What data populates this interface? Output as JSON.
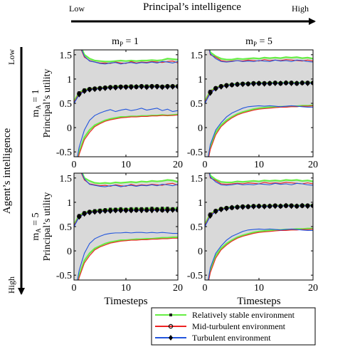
{
  "header": {
    "top_low": "Low",
    "top_title": "Principal’s intelligence",
    "top_high": "High",
    "left_low": "Low",
    "left_title": "Agent’s intelligence",
    "left_high": "High"
  },
  "columns": [
    {
      "pre": "m",
      "sub": "P",
      "post": " = 1"
    },
    {
      "pre": "m",
      "sub": "P",
      "post": " = 5"
    }
  ],
  "rows": [
    {
      "pre": "m",
      "sub": "A",
      "post": " = 1",
      "ylabel": "Principal’s utility"
    },
    {
      "pre": "m",
      "sub": "A",
      "post": " = 5",
      "ylabel": "Principal’s utility"
    }
  ],
  "xlabel": "Timesteps",
  "legend": {
    "entries": [
      {
        "label": "Relatively stable environment",
        "color": "#66ee44",
        "marker": "square"
      },
      {
        "label": "Mid-turbulent environment",
        "color": "#ee2222",
        "marker": "circle"
      },
      {
        "label": "Turbulent environment",
        "color": "#2255dd",
        "marker": "diamond"
      }
    ]
  },
  "colors": {
    "band": "#d9d9d9"
  },
  "chart_data": {
    "type": "line",
    "layout": "2x2 small multiples",
    "x": [
      0,
      1,
      2,
      3,
      4,
      5,
      6,
      7,
      8,
      9,
      10,
      11,
      12,
      13,
      14,
      15,
      16,
      17,
      18,
      19,
      20
    ],
    "xlim": [
      0,
      20
    ],
    "ylim": [
      -0.6,
      1.6
    ],
    "xticks": [
      0,
      10,
      20
    ],
    "yticks": [
      -0.5,
      0,
      0.5,
      1,
      1.5
    ],
    "ytick_labels": [
      "-0.5",
      "0",
      "0.5",
      "1",
      "1.5"
    ],
    "grid": false,
    "legend_position": "bottom-right",
    "panels": [
      {
        "name": "mA=1, mP=1",
        "series": [
          {
            "name": "Relatively stable environment",
            "mean": [
              0.55,
              0.72,
              0.78,
              0.8,
              0.81,
              0.82,
              0.83,
              0.84,
              0.85,
              0.85,
              0.85,
              0.86,
              0.85,
              0.86,
              0.86,
              0.86,
              0.86,
              0.85,
              0.86,
              0.86,
              0.86
            ],
            "upper": [
              2.0,
              1.75,
              1.5,
              1.42,
              1.38,
              1.37,
              1.36,
              1.36,
              1.37,
              1.38,
              1.37,
              1.38,
              1.37,
              1.38,
              1.38,
              1.39,
              1.38,
              1.39,
              1.42,
              1.41,
              1.4
            ],
            "lower": [
              -1.0,
              -0.5,
              -0.2,
              -0.05,
              0.05,
              0.1,
              0.15,
              0.18,
              0.2,
              0.22,
              0.22,
              0.23,
              0.23,
              0.24,
              0.24,
              0.25,
              0.25,
              0.26,
              0.25,
              0.26,
              0.27
            ]
          },
          {
            "name": "Mid-turbulent environment",
            "mean": [
              0.52,
              0.7,
              0.76,
              0.79,
              0.8,
              0.81,
              0.82,
              0.83,
              0.83,
              0.84,
              0.84,
              0.84,
              0.84,
              0.85,
              0.84,
              0.85,
              0.85,
              0.84,
              0.85,
              0.85,
              0.85
            ],
            "upper": [
              2.0,
              1.7,
              1.45,
              1.38,
              1.35,
              1.33,
              1.33,
              1.32,
              1.35,
              1.33,
              1.32,
              1.36,
              1.33,
              1.35,
              1.34,
              1.36,
              1.35,
              1.34,
              1.36,
              1.37,
              1.33
            ],
            "lower": [
              -1.0,
              -0.55,
              -0.25,
              -0.1,
              0.02,
              0.08,
              0.13,
              0.16,
              0.18,
              0.2,
              0.21,
              0.22,
              0.22,
              0.23,
              0.23,
              0.24,
              0.24,
              0.25,
              0.25,
              0.25,
              0.26
            ]
          },
          {
            "name": "Turbulent environment",
            "mean": [
              0.5,
              0.68,
              0.75,
              0.78,
              0.79,
              0.8,
              0.81,
              0.82,
              0.82,
              0.83,
              0.83,
              0.83,
              0.84,
              0.84,
              0.83,
              0.84,
              0.84,
              0.83,
              0.84,
              0.84,
              0.84
            ],
            "upper": [
              2.0,
              1.72,
              1.47,
              1.37,
              1.35,
              1.32,
              1.31,
              1.33,
              1.34,
              1.31,
              1.33,
              1.34,
              1.32,
              1.34,
              1.33,
              1.35,
              1.33,
              1.36,
              1.35,
              1.33,
              1.36
            ],
            "lower": [
              -1.0,
              -0.4,
              -0.05,
              0.15,
              0.25,
              0.3,
              0.34,
              0.37,
              0.33,
              0.36,
              0.38,
              0.35,
              0.37,
              0.4,
              0.36,
              0.38,
              0.4,
              0.35,
              0.38,
              0.33,
              0.35
            ]
          }
        ]
      },
      {
        "name": "mA=1, mP=5",
        "series": [
          {
            "name": "Relatively stable environment",
            "mean": [
              0.55,
              0.75,
              0.82,
              0.86,
              0.88,
              0.89,
              0.9,
              0.91,
              0.91,
              0.92,
              0.92,
              0.92,
              0.92,
              0.93,
              0.92,
              0.93,
              0.93,
              0.92,
              0.93,
              0.93,
              0.93
            ],
            "upper": [
              2.0,
              1.55,
              1.47,
              1.42,
              1.4,
              1.4,
              1.42,
              1.41,
              1.42,
              1.43,
              1.42,
              1.44,
              1.43,
              1.44,
              1.43,
              1.45,
              1.44,
              1.45,
              1.43,
              1.44,
              1.42
            ],
            "lower": [
              -1.0,
              -0.4,
              -0.1,
              0.05,
              0.15,
              0.22,
              0.28,
              0.32,
              0.35,
              0.38,
              0.4,
              0.41,
              0.42,
              0.42,
              0.43,
              0.43,
              0.44,
              0.44,
              0.45,
              0.45,
              0.46
            ]
          },
          {
            "name": "Mid-turbulent environment",
            "mean": [
              0.52,
              0.73,
              0.81,
              0.85,
              0.87,
              0.88,
              0.89,
              0.9,
              0.9,
              0.91,
              0.91,
              0.91,
              0.91,
              0.92,
              0.91,
              0.92,
              0.92,
              0.91,
              0.92,
              0.92,
              0.92
            ],
            "upper": [
              2.0,
              1.5,
              1.45,
              1.38,
              1.36,
              1.37,
              1.38,
              1.37,
              1.39,
              1.38,
              1.37,
              1.4,
              1.38,
              1.39,
              1.38,
              1.4,
              1.39,
              1.38,
              1.37,
              1.39,
              1.37
            ],
            "lower": [
              -1.0,
              -0.45,
              -0.15,
              0.02,
              0.12,
              0.2,
              0.26,
              0.3,
              0.33,
              0.36,
              0.38,
              0.39,
              0.4,
              0.41,
              0.42,
              0.42,
              0.43,
              0.43,
              0.44,
              0.44,
              0.45
            ]
          },
          {
            "name": "Turbulent environment",
            "mean": [
              0.5,
              0.71,
              0.8,
              0.84,
              0.86,
              0.88,
              0.89,
              0.89,
              0.9,
              0.9,
              0.91,
              0.9,
              0.91,
              0.91,
              0.91,
              0.92,
              0.91,
              0.91,
              0.92,
              0.91,
              0.92
            ],
            "upper": [
              2.0,
              1.52,
              1.42,
              1.36,
              1.35,
              1.36,
              1.38,
              1.36,
              1.37,
              1.36,
              1.38,
              1.37,
              1.36,
              1.39,
              1.37,
              1.38,
              1.36,
              1.39,
              1.38,
              1.36,
              1.35
            ],
            "lower": [
              -1.0,
              -0.35,
              -0.05,
              0.1,
              0.22,
              0.3,
              0.35,
              0.4,
              0.43,
              0.44,
              0.45,
              0.44,
              0.45,
              0.44,
              0.43,
              0.44,
              0.45,
              0.44,
              0.43,
              0.42,
              0.42
            ]
          }
        ]
      },
      {
        "name": "mA=5, mP=1",
        "series": [
          {
            "name": "Relatively stable environment",
            "mean": [
              0.55,
              0.73,
              0.79,
              0.81,
              0.83,
              0.84,
              0.85,
              0.86,
              0.86,
              0.87,
              0.86,
              0.87,
              0.87,
              0.87,
              0.87,
              0.88,
              0.87,
              0.88,
              0.88,
              0.87,
              0.88
            ],
            "upper": [
              2.0,
              1.75,
              1.5,
              1.44,
              1.4,
              1.39,
              1.4,
              1.39,
              1.41,
              1.4,
              1.41,
              1.42,
              1.41,
              1.43,
              1.42,
              1.44,
              1.43,
              1.44,
              1.46,
              1.45,
              1.42
            ],
            "lower": [
              -1.0,
              -0.5,
              -0.2,
              -0.05,
              0.05,
              0.1,
              0.15,
              0.18,
              0.2,
              0.22,
              0.22,
              0.23,
              0.24,
              0.24,
              0.25,
              0.25,
              0.26,
              0.27,
              0.27,
              0.28,
              0.28
            ]
          },
          {
            "name": "Mid-turbulent environment",
            "mean": [
              0.52,
              0.71,
              0.77,
              0.8,
              0.81,
              0.82,
              0.83,
              0.83,
              0.84,
              0.84,
              0.84,
              0.84,
              0.84,
              0.85,
              0.84,
              0.85,
              0.85,
              0.84,
              0.85,
              0.85,
              0.84
            ],
            "upper": [
              2.0,
              1.7,
              1.46,
              1.38,
              1.36,
              1.34,
              1.35,
              1.33,
              1.36,
              1.34,
              1.33,
              1.37,
              1.34,
              1.36,
              1.35,
              1.37,
              1.36,
              1.35,
              1.38,
              1.39,
              1.35
            ],
            "lower": [
              -1.0,
              -0.55,
              -0.25,
              -0.1,
              0.02,
              0.08,
              0.12,
              0.16,
              0.18,
              0.2,
              0.21,
              0.22,
              0.22,
              0.23,
              0.23,
              0.24,
              0.24,
              0.25,
              0.25,
              0.26,
              0.26
            ]
          },
          {
            "name": "Turbulent environment",
            "mean": [
              0.5,
              0.7,
              0.76,
              0.79,
              0.8,
              0.81,
              0.82,
              0.82,
              0.83,
              0.83,
              0.83,
              0.83,
              0.84,
              0.83,
              0.84,
              0.83,
              0.84,
              0.84,
              0.83,
              0.84,
              0.84
            ],
            "upper": [
              2.0,
              1.72,
              1.48,
              1.37,
              1.35,
              1.33,
              1.32,
              1.34,
              1.35,
              1.32,
              1.34,
              1.35,
              1.33,
              1.35,
              1.34,
              1.36,
              1.34,
              1.37,
              1.36,
              1.34,
              1.37
            ],
            "lower": [
              -1.0,
              -0.4,
              -0.05,
              0.15,
              0.25,
              0.3,
              0.34,
              0.36,
              0.37,
              0.37,
              0.38,
              0.37,
              0.38,
              0.38,
              0.37,
              0.38,
              0.37,
              0.38,
              0.37,
              0.36,
              0.36
            ]
          }
        ]
      },
      {
        "name": "mA=5, mP=5",
        "series": [
          {
            "name": "Relatively stable environment",
            "mean": [
              0.55,
              0.76,
              0.83,
              0.87,
              0.89,
              0.9,
              0.91,
              0.92,
              0.92,
              0.93,
              0.93,
              0.93,
              0.93,
              0.94,
              0.93,
              0.94,
              0.94,
              0.93,
              0.94,
              0.94,
              0.94
            ],
            "upper": [
              2.0,
              1.55,
              1.47,
              1.42,
              1.41,
              1.41,
              1.43,
              1.42,
              1.43,
              1.44,
              1.43,
              1.45,
              1.44,
              1.45,
              1.44,
              1.46,
              1.45,
              1.46,
              1.44,
              1.45,
              1.43
            ],
            "lower": [
              -1.0,
              -0.4,
              -0.1,
              0.05,
              0.15,
              0.22,
              0.28,
              0.32,
              0.35,
              0.38,
              0.4,
              0.41,
              0.42,
              0.43,
              0.43,
              0.44,
              0.44,
              0.45,
              0.45,
              0.46,
              0.46
            ]
          },
          {
            "name": "Mid-turbulent environment",
            "mean": [
              0.52,
              0.74,
              0.82,
              0.86,
              0.88,
              0.89,
              0.9,
              0.91,
              0.91,
              0.92,
              0.92,
              0.92,
              0.92,
              0.93,
              0.92,
              0.93,
              0.93,
              0.92,
              0.93,
              0.93,
              0.93
            ],
            "upper": [
              2.0,
              1.5,
              1.45,
              1.38,
              1.37,
              1.38,
              1.39,
              1.38,
              1.4,
              1.39,
              1.38,
              1.41,
              1.39,
              1.4,
              1.39,
              1.41,
              1.4,
              1.39,
              1.38,
              1.4,
              1.38
            ],
            "lower": [
              -1.0,
              -0.45,
              -0.15,
              0.02,
              0.12,
              0.2,
              0.26,
              0.3,
              0.33,
              0.36,
              0.38,
              0.39,
              0.4,
              0.41,
              0.42,
              0.42,
              0.43,
              0.43,
              0.44,
              0.44,
              0.45
            ]
          },
          {
            "name": "Turbulent environment",
            "mean": [
              0.5,
              0.72,
              0.81,
              0.85,
              0.87,
              0.89,
              0.9,
              0.9,
              0.91,
              0.91,
              0.92,
              0.91,
              0.92,
              0.92,
              0.92,
              0.93,
              0.92,
              0.92,
              0.93,
              0.92,
              0.93
            ],
            "upper": [
              2.0,
              1.52,
              1.42,
              1.36,
              1.35,
              1.36,
              1.38,
              1.36,
              1.37,
              1.36,
              1.38,
              1.37,
              1.36,
              1.39,
              1.37,
              1.38,
              1.36,
              1.39,
              1.38,
              1.36,
              1.35
            ],
            "lower": [
              -1.0,
              -0.35,
              -0.05,
              0.1,
              0.22,
              0.3,
              0.35,
              0.4,
              0.43,
              0.44,
              0.45,
              0.44,
              0.45,
              0.44,
              0.43,
              0.44,
              0.45,
              0.44,
              0.43,
              0.42,
              0.42
            ]
          }
        ]
      }
    ]
  }
}
